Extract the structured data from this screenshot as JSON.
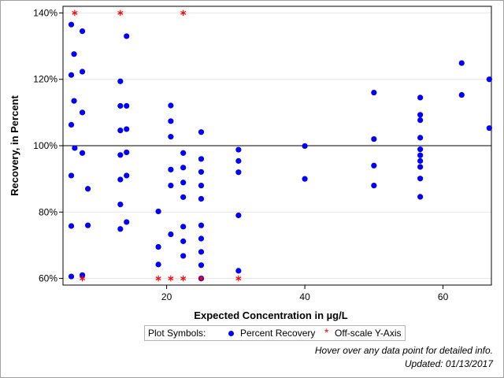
{
  "chart_data": {
    "type": "scatter",
    "xlabel": "Expected Concentration in µg/L",
    "ylabel": "Recovery, in Percent",
    "xlim": [
      5,
      67
    ],
    "ylim": [
      58,
      142
    ],
    "x_ticks": [
      20,
      40,
      60
    ],
    "y_ticks": [
      60,
      80,
      100,
      120,
      140
    ],
    "y_tick_labels": [
      "60%",
      "80%",
      "100%",
      "120%",
      "140%"
    ],
    "reference_line": 100,
    "grid": "horizontal",
    "series": [
      {
        "name": "Percent Recovery",
        "marker": "dot",
        "color": "#0000ff",
        "points": [
          [
            6.2,
            136.5
          ],
          [
            6.2,
            121.3
          ],
          [
            6.2,
            106.3
          ],
          [
            6.2,
            91.0
          ],
          [
            6.2,
            75.8
          ],
          [
            6.2,
            60.6
          ],
          [
            6.6,
            127.6
          ],
          [
            6.6,
            113.5
          ],
          [
            6.7,
            99.3
          ],
          [
            7.8,
            134.5
          ],
          [
            7.8,
            122.3
          ],
          [
            7.8,
            110.0
          ],
          [
            7.8,
            97.8
          ],
          [
            7.8,
            61.0
          ],
          [
            8.6,
            87.0
          ],
          [
            8.6,
            76.0
          ],
          [
            13.3,
            119.4
          ],
          [
            13.3,
            112.0
          ],
          [
            13.3,
            104.6
          ],
          [
            13.3,
            97.2
          ],
          [
            13.3,
            89.8
          ],
          [
            13.3,
            82.3
          ],
          [
            13.3,
            74.9
          ],
          [
            14.2,
            133.0
          ],
          [
            14.2,
            112.0
          ],
          [
            14.2,
            105.0
          ],
          [
            14.2,
            98.0
          ],
          [
            14.2,
            91.0
          ],
          [
            14.2,
            77.0
          ],
          [
            18.8,
            80.2
          ],
          [
            18.8,
            69.5
          ],
          [
            18.8,
            64.2
          ],
          [
            20.6,
            112.1
          ],
          [
            20.6,
            107.4
          ],
          [
            20.6,
            102.7
          ],
          [
            20.6,
            92.8
          ],
          [
            20.6,
            88.0
          ],
          [
            20.6,
            73.3
          ],
          [
            22.4,
            97.8
          ],
          [
            22.4,
            93.4
          ],
          [
            22.4,
            88.9
          ],
          [
            22.4,
            84.5
          ],
          [
            22.4,
            75.6
          ],
          [
            22.4,
            71.2
          ],
          [
            22.4,
            66.8
          ],
          [
            25.0,
            104.1
          ],
          [
            25.0,
            96.0
          ],
          [
            25.0,
            92.1
          ],
          [
            25.0,
            88.0
          ],
          [
            25.0,
            84.0
          ],
          [
            25.0,
            76.0
          ],
          [
            25.0,
            72.0
          ],
          [
            25.0,
            68.0
          ],
          [
            25.0,
            64.0
          ],
          [
            25.0,
            60.0
          ],
          [
            30.4,
            98.8
          ],
          [
            30.4,
            95.4
          ],
          [
            30.4,
            92.0
          ],
          [
            30.4,
            79.0
          ],
          [
            30.4,
            62.3
          ],
          [
            40.0,
            99.9
          ],
          [
            40.0,
            90.0
          ],
          [
            50.0,
            116.0
          ],
          [
            50.0,
            102.0
          ],
          [
            50.0,
            94.0
          ],
          [
            50.0,
            88.0
          ],
          [
            56.7,
            114.5
          ],
          [
            56.7,
            109.3
          ],
          [
            56.7,
            107.7
          ],
          [
            56.7,
            102.4
          ],
          [
            56.7,
            98.9
          ],
          [
            56.7,
            97.1
          ],
          [
            56.7,
            95.4
          ],
          [
            56.7,
            93.6
          ],
          [
            56.7,
            90.1
          ],
          [
            56.7,
            84.6
          ],
          [
            62.7,
            124.9
          ],
          [
            62.7,
            115.3
          ],
          [
            66.7,
            120.0
          ],
          [
            66.7,
            105.3
          ]
        ]
      },
      {
        "name": "Off-scale Y-Axis",
        "marker": "star",
        "color": "#ff0000",
        "points": [
          [
            6.7,
            140
          ],
          [
            13.3,
            140
          ],
          [
            22.4,
            140
          ],
          [
            7.8,
            60
          ],
          [
            18.8,
            60
          ],
          [
            20.6,
            60
          ],
          [
            22.4,
            60
          ],
          [
            25.0,
            60
          ],
          [
            30.4,
            60
          ]
        ]
      }
    ]
  },
  "legend": {
    "title": "Plot Symbols:",
    "items": [
      "Percent Recovery",
      "Off-scale Y-Axis"
    ],
    "star_glyph": "*"
  },
  "footnotes": {
    "hover": "Hover over any data point for detailed info.",
    "updated": "Updated: 01/13/2017"
  }
}
